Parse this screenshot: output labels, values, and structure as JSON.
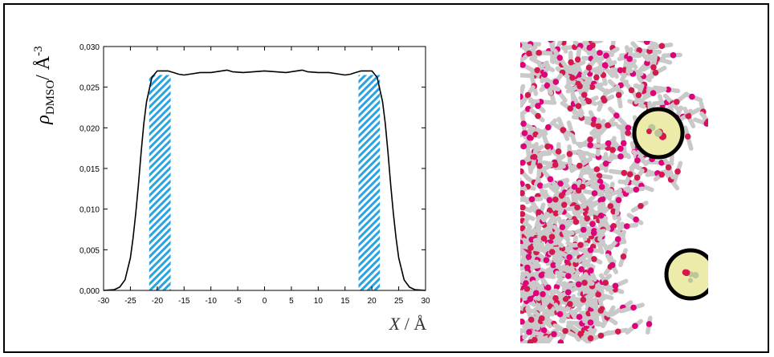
{
  "chart_data": {
    "type": "line",
    "title": "",
    "ylabel": {
      "rho": "ρ",
      "subscript": "DMSO",
      "slash": "/ Å",
      "exponent": "-3"
    },
    "xlabel": {
      "var": "X",
      "unit": "/ Å"
    },
    "xlim": [
      -30,
      30
    ],
    "ylim": [
      0.0,
      0.03
    ],
    "xticks": [
      -30,
      -25,
      -20,
      -15,
      -10,
      -5,
      0,
      5,
      10,
      15,
      20,
      25,
      30
    ],
    "xtick_labels": [
      "-30",
      "-25",
      "-20",
      "-15",
      "-10",
      "-5",
      "0",
      "5",
      "10",
      "15",
      "20",
      "25",
      "30"
    ],
    "yticks": [
      0.0,
      0.005,
      0.01,
      0.015,
      0.02,
      0.025,
      0.03
    ],
    "ytick_labels": [
      "0,000",
      "0,005",
      "0,010",
      "0,015",
      "0,020",
      "0,025",
      "0,030"
    ],
    "series": [
      {
        "name": "DMSO density",
        "x": [
          -30,
          -28,
          -27,
          -26,
          -25,
          -24.5,
          -24,
          -23.5,
          -23,
          -22.5,
          -22,
          -21,
          -20,
          -19,
          -18,
          -17,
          -16,
          -15,
          -14,
          -12,
          -10,
          -8,
          -7,
          -6,
          -4,
          -2,
          0,
          2,
          4,
          6,
          7,
          8,
          10,
          12,
          14,
          15,
          16,
          17,
          18,
          19,
          20,
          21,
          22,
          22.5,
          23,
          23.5,
          24,
          24.5,
          25,
          26,
          27,
          28,
          30
        ],
        "y": [
          0.0,
          0.0001,
          0.0004,
          0.0013,
          0.004,
          0.0065,
          0.0095,
          0.013,
          0.017,
          0.0205,
          0.0232,
          0.0262,
          0.027,
          0.027,
          0.027,
          0.0268,
          0.0266,
          0.0265,
          0.0266,
          0.0268,
          0.0268,
          0.027,
          0.0271,
          0.0269,
          0.0268,
          0.0269,
          0.027,
          0.0269,
          0.0268,
          0.027,
          0.0271,
          0.0269,
          0.0268,
          0.0268,
          0.0266,
          0.0265,
          0.0266,
          0.0268,
          0.027,
          0.027,
          0.027,
          0.0262,
          0.0232,
          0.0205,
          0.017,
          0.013,
          0.0095,
          0.0065,
          0.004,
          0.0013,
          0.0004,
          0.0001,
          0.0
        ]
      }
    ],
    "shaded_regions": [
      {
        "label": "left interface region",
        "x0": -21.5,
        "x1": -17.5,
        "y": 0.0265
      },
      {
        "label": "right interface region",
        "x0": 17.5,
        "x1": 21.5,
        "y": 0.0265
      }
    ],
    "colors": {
      "line": "#000000",
      "hatch": "#2aa3e0"
    }
  },
  "snapshot": {
    "description_icon": "molecular-snapshot",
    "colors": {
      "carbon": "#c9c9c9",
      "oxygen": "#d4194f",
      "sulfur": "#e0007a",
      "highlight_fill": "#ecebaa",
      "highlight_ring": "#000000"
    }
  }
}
